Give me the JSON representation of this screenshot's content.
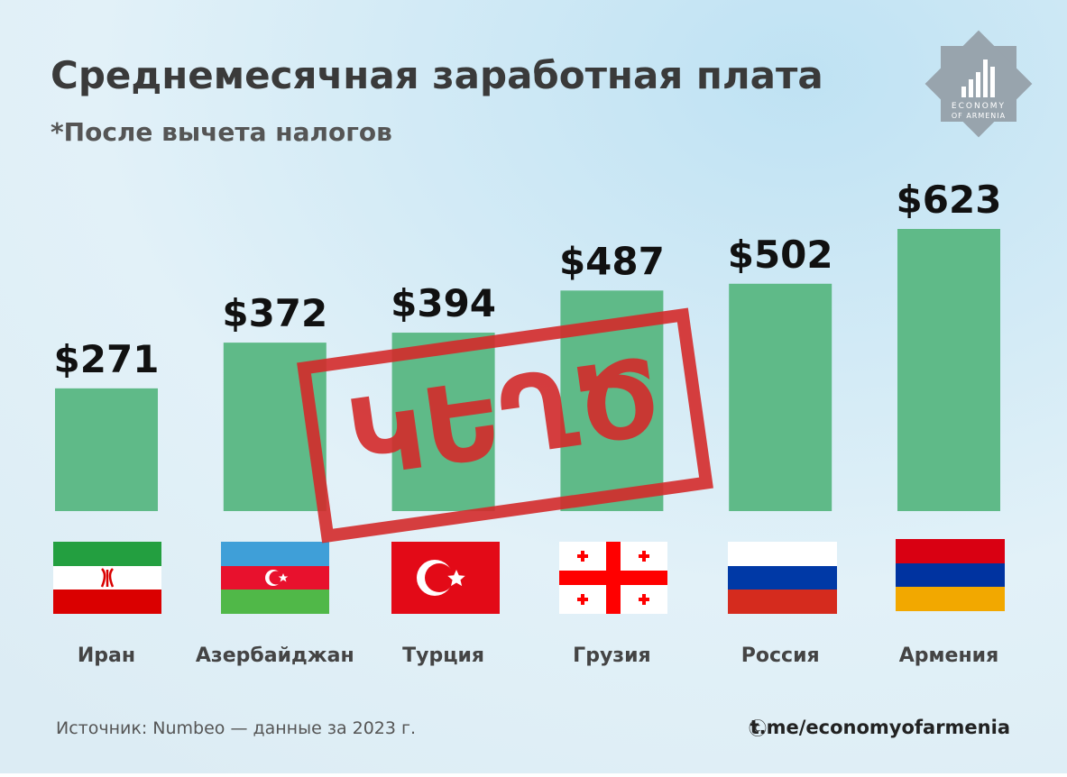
{
  "chart_data": {
    "type": "bar",
    "title": "Среднемесячная заработная плата",
    "subtitle": "*После вычета налогов",
    "categories": [
      "Иран",
      "Азербайджан",
      "Турция",
      "Грузия",
      "Россия",
      "Армения"
    ],
    "values": [
      271,
      372,
      394,
      487,
      502,
      623
    ],
    "value_labels": [
      "$271",
      "$372",
      "$394",
      "$487",
      "$502",
      "$623"
    ],
    "color": "#5fba88",
    "stamp": "ԿԵՂԾ",
    "logo": [
      "ECONOMY",
      "OF ARMENIA"
    ],
    "source": "Источник: Numbeo — данные за 2023 г.",
    "copyright_icon": "ⓒ",
    "link": "t.me/economyofarmenia"
  }
}
